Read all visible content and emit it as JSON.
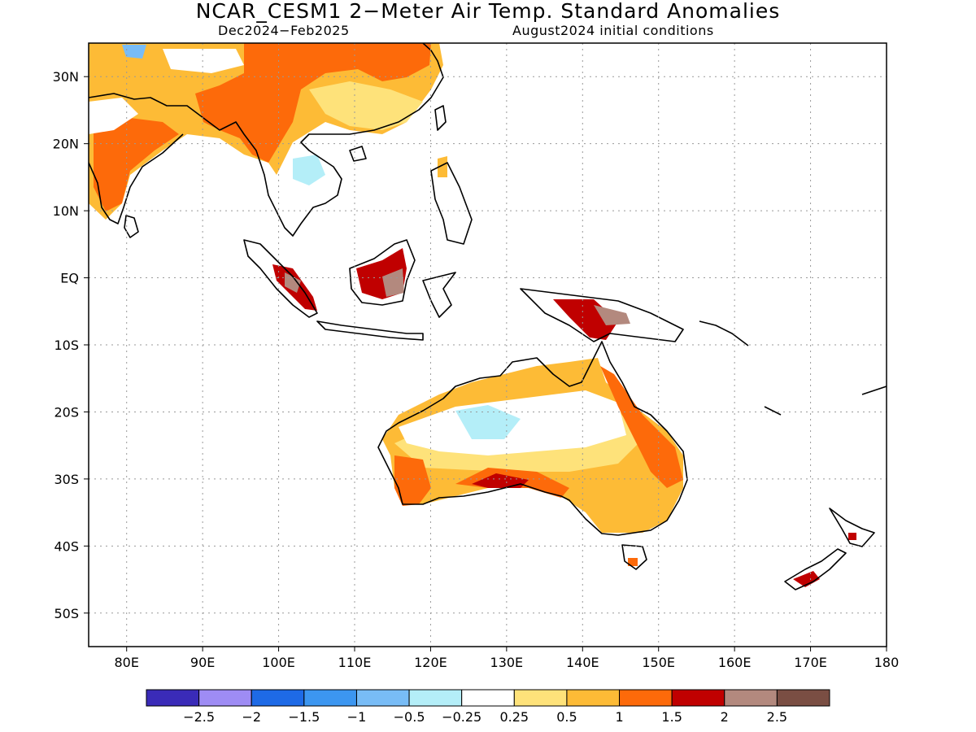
{
  "title": "NCAR_CESM1 2−Meter Air Temp. Standard Anomalies",
  "subtitle_left": "Dec2024−Feb2025",
  "subtitle_right": "August2024 initial conditions",
  "map": {
    "lon_range": [
      75,
      180
    ],
    "lat_range": [
      -55,
      35
    ],
    "lat_ticks": [
      {
        "lat": 30,
        "label": "30N"
      },
      {
        "lat": 20,
        "label": "20N"
      },
      {
        "lat": 10,
        "label": "10N"
      },
      {
        "lat": 0,
        "label": "EQ"
      },
      {
        "lat": -10,
        "label": "10S"
      },
      {
        "lat": -20,
        "label": "20S"
      },
      {
        "lat": -30,
        "label": "30S"
      },
      {
        "lat": -40,
        "label": "40S"
      },
      {
        "lat": -50,
        "label": "50S"
      }
    ],
    "lon_ticks": [
      {
        "lon": 80,
        "label": "80E"
      },
      {
        "lon": 90,
        "label": "90E"
      },
      {
        "lon": 100,
        "label": "100E"
      },
      {
        "lon": 110,
        "label": "110E"
      },
      {
        "lon": 120,
        "label": "120E"
      },
      {
        "lon": 130,
        "label": "130E"
      },
      {
        "lon": 140,
        "label": "140E"
      },
      {
        "lon": 150,
        "label": "150E"
      },
      {
        "lon": 160,
        "label": "160E"
      },
      {
        "lon": 170,
        "label": "170E"
      },
      {
        "lon": 180,
        "label": "180"
      }
    ],
    "grid": true
  },
  "colorbar": {
    "colors": [
      "#3a2bb8",
      "#9e8cf4",
      "#1e6ae6",
      "#3c96f0",
      "#78bcf6",
      "#b4eef8",
      "#ffffff",
      "#fee27a",
      "#fdbb36",
      "#fd6a0a",
      "#c00000",
      "#b3897e",
      "#7a4e43"
    ],
    "labels": [
      "−2.5",
      "−2",
      "−1.5",
      "−1",
      "−0.5",
      "−0.25",
      "0.25",
      "0.5",
      "1",
      "1.5",
      "2",
      "2.5"
    ]
  }
}
